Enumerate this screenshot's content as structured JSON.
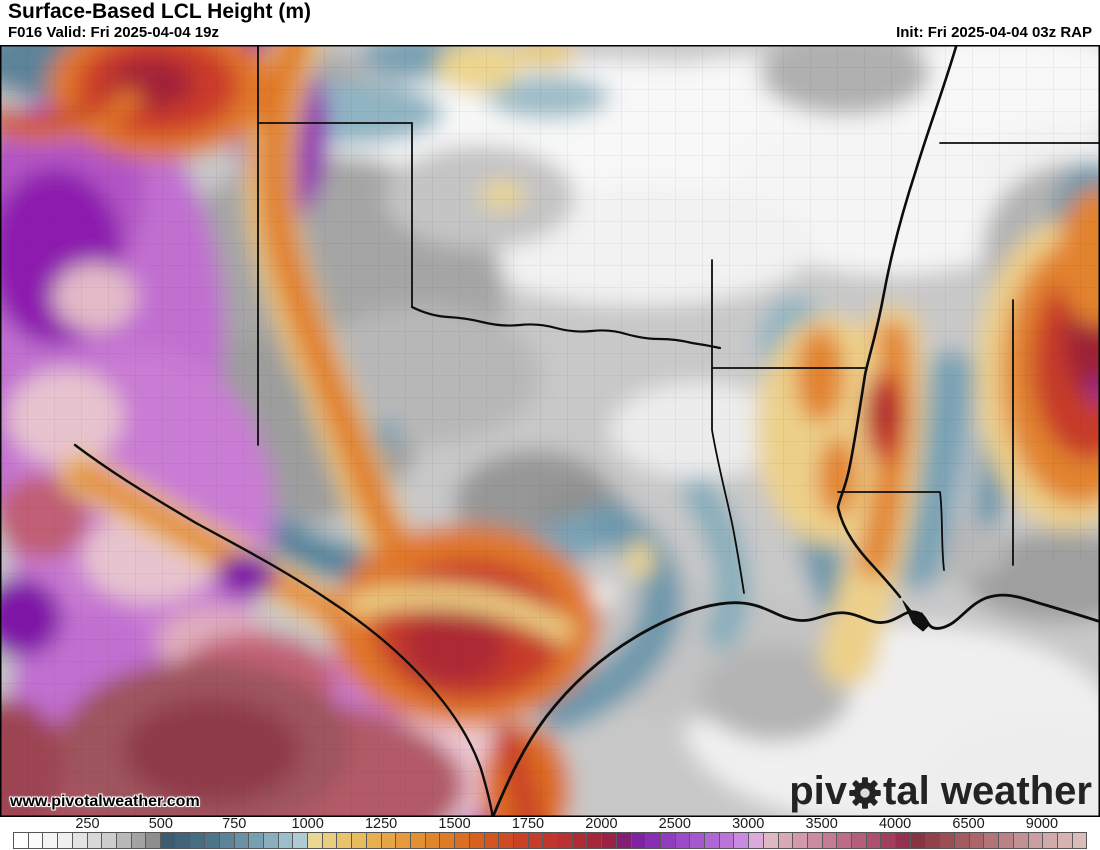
{
  "header": {
    "title": "Surface-Based LCL Height (m)",
    "forecast_info": "F016 Valid: Fri 2025-04-04 19z",
    "init_info": "Init: Fri 2025-04-04 03z RAP"
  },
  "map": {
    "watermark": "www.pivotalweather.com",
    "logo": {
      "prefix": "piv",
      "suffix": "tal weather",
      "gear_icon": "gear"
    }
  },
  "colorbar": {
    "unit": "m",
    "ticks": [
      {
        "v": 250,
        "label": "250"
      },
      {
        "v": 500,
        "label": "500"
      },
      {
        "v": 750,
        "label": "750"
      },
      {
        "v": 1000,
        "label": "1000"
      },
      {
        "v": 1250,
        "label": "1250"
      },
      {
        "v": 1500,
        "label": "1500"
      },
      {
        "v": 1750,
        "label": "1750"
      },
      {
        "v": 2000,
        "label": "2000"
      },
      {
        "v": 2500,
        "label": "2500"
      },
      {
        "v": 3000,
        "label": "3000"
      },
      {
        "v": 3500,
        "label": "3500"
      },
      {
        "v": 4000,
        "label": "4000"
      },
      {
        "v": 6500,
        "label": "6500"
      },
      {
        "v": 9000,
        "label": "9000"
      }
    ],
    "segments": [
      [
        0,
        2000,
        50
      ],
      [
        2000,
        4000,
        100
      ],
      [
        4000,
        10500,
        500
      ]
    ],
    "stops": [
      [
        0,
        "#ffffff"
      ],
      [
        150,
        "#efefef"
      ],
      [
        300,
        "#cdcdcd"
      ],
      [
        450,
        "#8f8f8f"
      ],
      [
        495,
        "#6e6e6e"
      ],
      [
        500,
        "#3c5a70"
      ],
      [
        650,
        "#4d768c"
      ],
      [
        800,
        "#76a0b2"
      ],
      [
        950,
        "#aecbd5"
      ],
      [
        995,
        "#c6dade"
      ],
      [
        1000,
        "#ead792"
      ],
      [
        1150,
        "#e7bb5e"
      ],
      [
        1300,
        "#e59a3b"
      ],
      [
        1450,
        "#df7b24"
      ],
      [
        1575,
        "#d65a1e"
      ],
      [
        1700,
        "#cb4125"
      ],
      [
        1850,
        "#bb3030"
      ],
      [
        1975,
        "#a2243c"
      ],
      [
        2050,
        "#8c1d55"
      ],
      [
        2150,
        "#7c1f92"
      ],
      [
        2250,
        "#8227ae"
      ],
      [
        2450,
        "#9643c5"
      ],
      [
        2650,
        "#aa5dd1"
      ],
      [
        2850,
        "#c37cdd"
      ],
      [
        2975,
        "#d79fe7"
      ],
      [
        3050,
        "#e3c0cb"
      ],
      [
        3250,
        "#d7a2b1"
      ],
      [
        3450,
        "#c9839a"
      ],
      [
        3650,
        "#b96581"
      ],
      [
        3850,
        "#a94868"
      ],
      [
        3975,
        "#983253"
      ],
      [
        4100,
        "#7f2b3c"
      ],
      [
        4750,
        "#8c3a47"
      ],
      [
        5500,
        "#9b4f55"
      ],
      [
        6500,
        "#ab666b"
      ],
      [
        7500,
        "#bb8286"
      ],
      [
        8500,
        "#cb9fa1"
      ],
      [
        9500,
        "#d7b2b2"
      ],
      [
        10500,
        "#e0c4c2"
      ]
    ]
  },
  "chart_data": {
    "type": "heatmap",
    "title": "Surface-Based LCL Height (m)",
    "units": "m",
    "scale_ticks": [
      250,
      500,
      750,
      1000,
      1250,
      1500,
      1750,
      2000,
      2500,
      3000,
      3500,
      4000,
      6500,
      9000
    ],
    "legend_position": "bottom"
  }
}
